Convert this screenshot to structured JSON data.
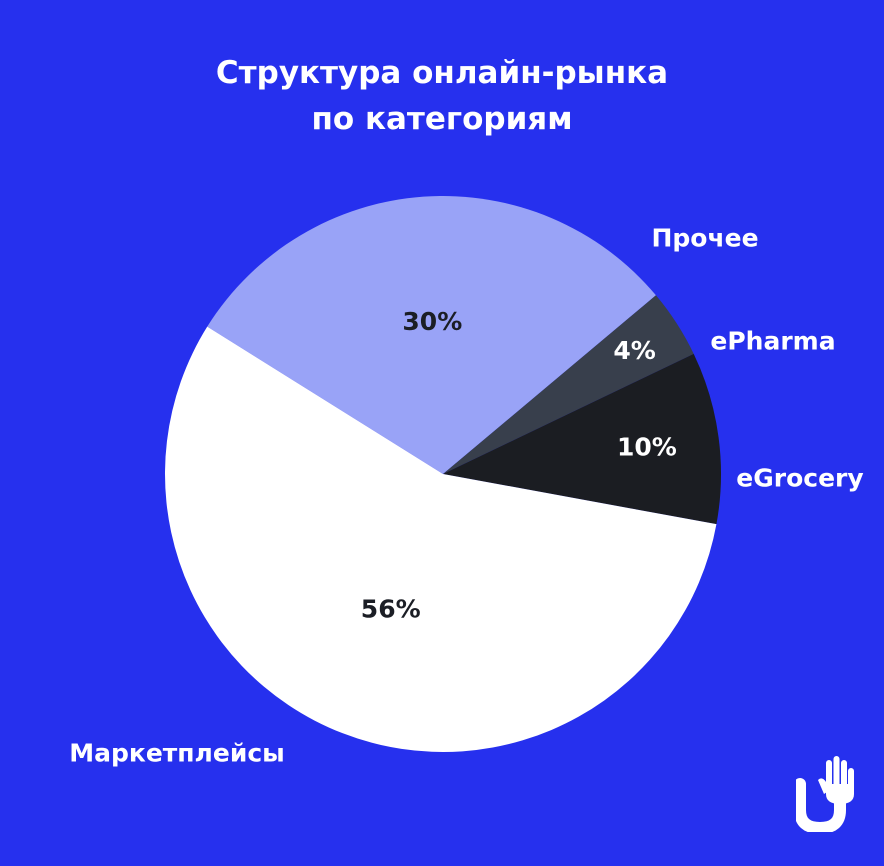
{
  "chart_data": {
    "type": "pie",
    "title_lines": [
      "Структура онлайн-рынка",
      "по категориям"
    ],
    "slices": [
      {
        "label": "Прочее",
        "value": 30,
        "value_label": "30%",
        "color": "#99A3F7",
        "value_text_color": "#1B1E25"
      },
      {
        "label": "ePharma",
        "value": 4,
        "value_label": "4%",
        "color": "#383F4C",
        "value_text_color": "#FFFFFF"
      },
      {
        "label": "eGrocery",
        "value": 10,
        "value_label": "10%",
        "color": "#1B1D22",
        "value_text_color": "#FFFFFF"
      },
      {
        "label": "Маркетплейсы",
        "value": 56,
        "value_label": "56%",
        "color": "#FFFFFF",
        "value_text_color": "#1B1E25"
      }
    ],
    "background_color": "#2630EE",
    "legend": "none"
  },
  "brand": {
    "logo_icon": "hand-u-logo-icon"
  }
}
